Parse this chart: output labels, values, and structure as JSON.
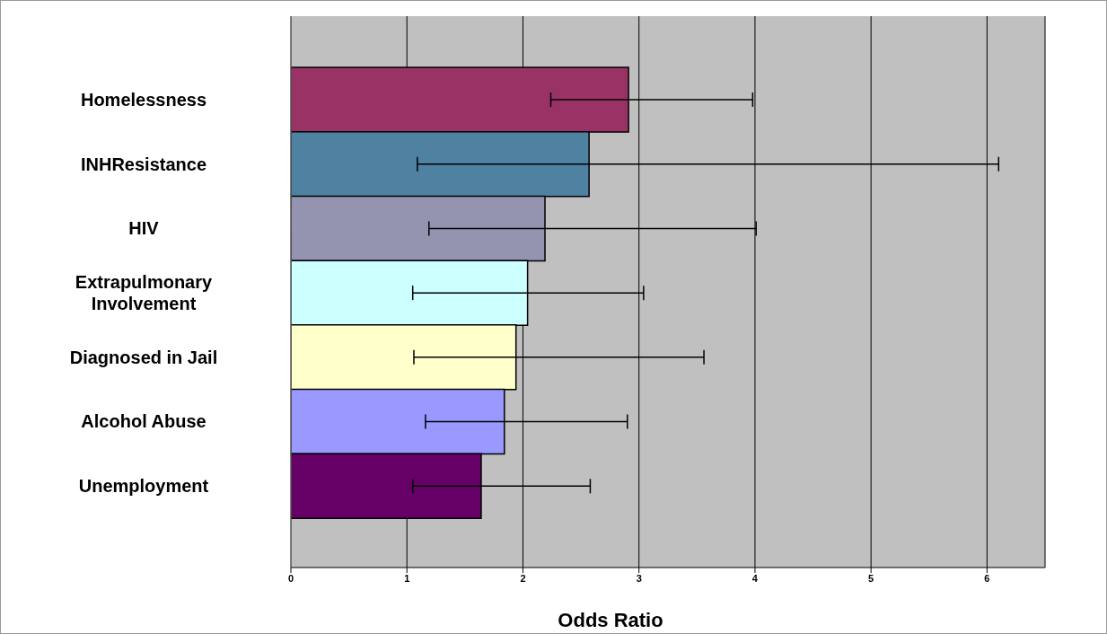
{
  "chart_data": {
    "type": "bar",
    "orientation": "horizontal",
    "xlabel": "Odds Ratio",
    "categories": [
      "Homelessness",
      "INHResistance",
      "HIV",
      "Extrapulmonary Involvement",
      "Diagnosed in Jail",
      "Alcohol Abuse",
      "Unemployment"
    ],
    "values": [
      2.91,
      2.57,
      2.19,
      2.04,
      1.94,
      1.84,
      1.64
    ],
    "errors": [
      [
        2.24,
        3.98
      ],
      [
        1.09,
        6.1
      ],
      [
        1.19,
        4.01
      ],
      [
        1.05,
        3.04
      ],
      [
        1.06,
        3.56
      ],
      [
        1.16,
        2.9
      ],
      [
        1.05,
        2.58
      ]
    ],
    "colors": [
      "#993366",
      "#4f81a1",
      "#9494b0",
      "#ccffff",
      "#ffffcc",
      "#9999ff",
      "#660066"
    ],
    "xlim": [
      0,
      6.5
    ],
    "xticks": [
      0,
      1,
      2,
      3,
      4,
      5,
      6
    ],
    "grid": "x"
  }
}
